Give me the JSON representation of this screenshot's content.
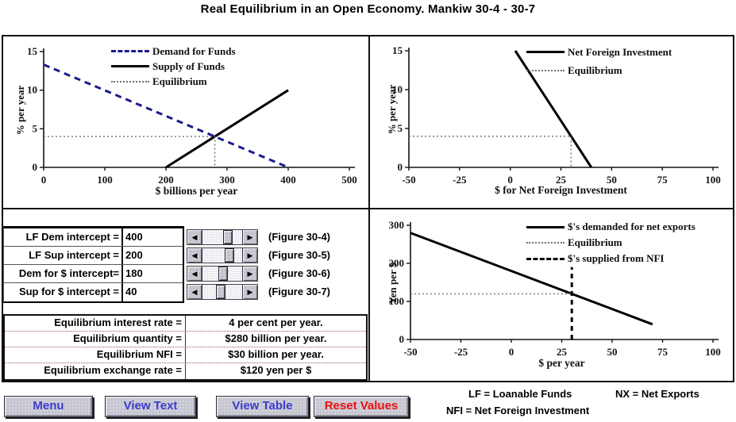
{
  "title": "Real Equilibrium in an Open Economy. Mankiw 30-4 - 30-7",
  "colors": {
    "button_blue": "#3a3ace",
    "button_red": "#ee0f0f",
    "demand_blue": "#1b1b8e",
    "line_black": "#000000",
    "equilibrium_gray": "#6e6e6e"
  },
  "chart_data": [
    {
      "id": "loanable-funds",
      "type": "line",
      "xlabel": "$ billions per year",
      "ylabel": "% per year",
      "xlim": [
        0,
        500
      ],
      "ylim": [
        0,
        15
      ],
      "xticks": [
        0,
        100,
        200,
        300,
        400,
        500
      ],
      "yticks": [
        0,
        5,
        10,
        15
      ],
      "grid": false,
      "legend_position": "top-center-inside",
      "plot": {
        "l": 51,
        "r": 436,
        "t": 19,
        "b": 165
      },
      "series": [
        {
          "name": "Demand for Funds",
          "style": "dashed-blue",
          "width": 3,
          "points": [
            [
              0,
              13.3
            ],
            [
              400,
              0
            ]
          ]
        },
        {
          "name": "Supply of Funds",
          "style": "solid-black",
          "width": 3,
          "points": [
            [
              200,
              0
            ],
            [
              400,
              10
            ]
          ]
        },
        {
          "name": "Equilibrium",
          "style": "dotted-gray",
          "width": 1.4,
          "points": [
            [
              0,
              4
            ],
            [
              280,
              4
            ],
            [
              280,
              0
            ]
          ]
        }
      ],
      "legend": [
        {
          "label": "Demand for Funds",
          "style": "dashed-blue"
        },
        {
          "label": "Supply of Funds",
          "style": "solid-black"
        },
        {
          "label": "Equilibrium",
          "style": "dotted-gray"
        }
      ]
    },
    {
      "id": "net-foreign-investment",
      "type": "line",
      "xlabel": "$ for Net Foreign Investment",
      "ylabel": "% per year",
      "xlim": [
        -50,
        100
      ],
      "ylim": [
        0,
        15
      ],
      "xticks": [
        -50,
        -25,
        0,
        25,
        50,
        75,
        100
      ],
      "yticks": [
        0,
        5,
        10,
        15
      ],
      "grid": false,
      "legend_position": "top-right-inside",
      "plot": {
        "l": 49,
        "r": 432,
        "t": 18,
        "b": 165
      },
      "series": [
        {
          "name": "Net Foreign Investment",
          "style": "solid-black",
          "width": 3,
          "points": [
            [
              2.5,
              15
            ],
            [
              40,
              0
            ]
          ]
        },
        {
          "name": "Equilibrium",
          "style": "dotted-gray",
          "width": 1.4,
          "points": [
            [
              -50,
              4
            ],
            [
              30,
              4
            ],
            [
              30,
              0
            ]
          ]
        }
      ],
      "legend": [
        {
          "label": "Net Foreign Investment",
          "style": "solid-black"
        },
        {
          "label": "Equilibrium",
          "style": "dotted-gray"
        }
      ]
    },
    {
      "id": "exchange-rate",
      "type": "line",
      "xlabel": "$ per year",
      "ylabel": "Yen per $",
      "xlim": [
        -50,
        100
      ],
      "ylim": [
        0,
        300
      ],
      "xticks": [
        -50,
        -25,
        0,
        25,
        50,
        75,
        100
      ],
      "yticks": [
        0,
        100,
        200,
        300
      ],
      "grid": false,
      "legend_position": "top-right-inside",
      "plot": {
        "l": 51,
        "r": 432,
        "t": 20,
        "b": 164
      },
      "series": [
        {
          "name": "$'s demanded for net exports",
          "style": "solid-black",
          "width": 3,
          "points": [
            [
              -50,
              280
            ],
            [
              70,
              40
            ]
          ]
        },
        {
          "name": "Equilibrium",
          "style": "dotted-gray",
          "width": 1.4,
          "points": [
            [
              -50,
              120
            ],
            [
              30,
              120
            ]
          ]
        },
        {
          "name": "$'s supplied from NFI",
          "style": "dashed-black",
          "width": 3,
          "points": [
            [
              30,
              0
            ],
            [
              30,
              190
            ]
          ]
        }
      ],
      "legend": [
        {
          "label": "$'s demanded for net exports",
          "style": "solid-black"
        },
        {
          "label": "Equilibrium",
          "style": "dotted-gray"
        },
        {
          "label": "$'s supplied from NFI",
          "style": "dashed-black"
        }
      ]
    }
  ],
  "controls": {
    "rows": [
      {
        "label": "LF Dem intercept =",
        "value": "400",
        "figure": "(Figure 30-4)",
        "thumb": 68
      },
      {
        "label": "LF Sup intercept =",
        "value": "200",
        "figure": "(Figure 30-5)",
        "thumb": 74
      },
      {
        "label": "Dem for $ intercept=",
        "value": "180",
        "figure": "(Figure 30-6)",
        "thumb": 52
      },
      {
        "label": "Sup for $ intercept =",
        "value": "40",
        "figure": "(Figure 30-7)",
        "thumb": 46
      }
    ]
  },
  "results": {
    "rows": [
      {
        "label": "Equilibrium interest rate =",
        "value": "4 per cent per year."
      },
      {
        "label": "Equilibrium quantity =",
        "value": "$280 billion per year."
      },
      {
        "label": "Equilibrium NFI =",
        "value": "$30 billion per year."
      },
      {
        "label": "Equilibrium exchange rate =",
        "value": "$120 yen per $"
      }
    ]
  },
  "buttons": [
    {
      "label": "Menu",
      "color": "#3a3ace"
    },
    {
      "label": "View Text",
      "color": "#3a3ace"
    },
    {
      "label": "View Table",
      "color": "#3a3ace"
    },
    {
      "label": "Reset Values",
      "color": "#ee0f0f"
    }
  ],
  "abbreviations": {
    "lf": "LF = Loanable Funds",
    "nx": "NX = Net Exports",
    "nfi": "NFI = Net Foreign Investment"
  }
}
